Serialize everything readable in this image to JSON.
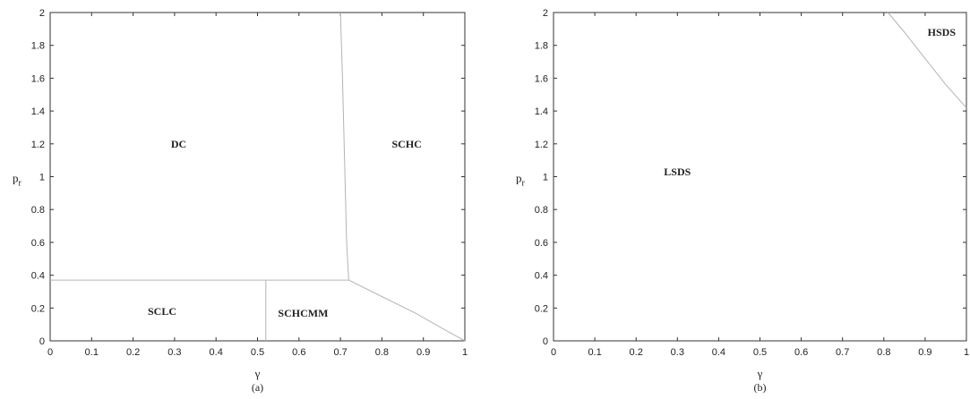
{
  "chart_data": [
    {
      "type": "line",
      "title": "",
      "caption": "(a)",
      "xlabel": "γ",
      "ylabel": "p",
      "ylabel_sub": "r",
      "xlim": [
        0,
        1
      ],
      "ylim": [
        0,
        2
      ],
      "xticks": [
        "0",
        "0.1",
        "0.2",
        "0.3",
        "0.4",
        "0.5",
        "0.6",
        "0.7",
        "0.8",
        "0.9",
        "1"
      ],
      "yticks": [
        "0",
        "0.2",
        "0.4",
        "0.6",
        "0.8",
        "1",
        "1.2",
        "1.4",
        "1.6",
        "1.8",
        "2"
      ],
      "grid": false,
      "series": [
        {
          "x": [
            0,
            0.72
          ],
          "y": [
            0.37,
            0.37
          ]
        },
        {
          "x": [
            0.7,
            0.705,
            0.71,
            0.715,
            0.72
          ],
          "y": [
            2,
            1.6,
            1.1,
            0.6,
            0.37
          ]
        },
        {
          "x": [
            0.52,
            0.52
          ],
          "y": [
            0,
            0.37
          ]
        },
        {
          "x": [
            0.72,
            0.8,
            0.88,
            0.95,
            1.0
          ],
          "y": [
            0.37,
            0.27,
            0.17,
            0.07,
            0
          ]
        }
      ],
      "annotations": [
        {
          "text": "DC",
          "x": 0.31,
          "y": 1.2
        },
        {
          "text": "SCHC",
          "x": 0.86,
          "y": 1.2
        },
        {
          "text": "SCLC",
          "x": 0.27,
          "y": 0.18
        },
        {
          "text": "SCHCMM",
          "x": 0.61,
          "y": 0.17
        }
      ]
    },
    {
      "type": "line",
      "title": "",
      "caption": "(b)",
      "xlabel": "γ",
      "ylabel": "p",
      "ylabel_sub": "r",
      "xlim": [
        0,
        1
      ],
      "ylim": [
        0,
        2
      ],
      "xticks": [
        "0",
        "0.1",
        "0.2",
        "0.3",
        "0.4",
        "0.5",
        "0.6",
        "0.7",
        "0.8",
        "0.9",
        "1"
      ],
      "yticks": [
        "0",
        "0.2",
        "0.4",
        "0.6",
        "0.8",
        "1",
        "1.2",
        "1.4",
        "1.6",
        "1.8",
        "2"
      ],
      "grid": false,
      "series": [
        {
          "x": [
            0.81,
            0.85,
            0.9,
            0.95,
            1.0
          ],
          "y": [
            2,
            1.88,
            1.72,
            1.56,
            1.42
          ]
        }
      ],
      "annotations": [
        {
          "text": "LSDS",
          "x": 0.3,
          "y": 1.03
        },
        {
          "text": "HSDS",
          "x": 0.94,
          "y": 1.88
        }
      ]
    }
  ]
}
